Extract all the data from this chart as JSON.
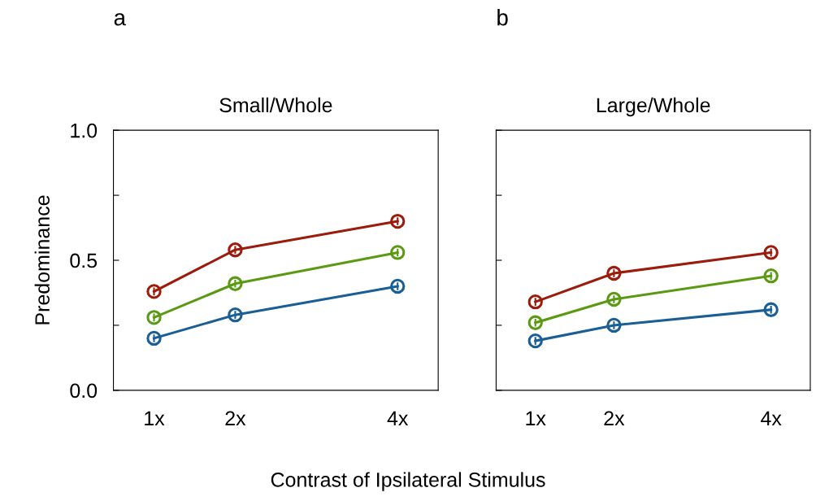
{
  "chart_data": [
    {
      "type": "line",
      "title": "Small/Whole",
      "ylabel": "Predominance",
      "xlabel": "Contrast of Ipsilateral Stimulus",
      "annotations": [
        "a"
      ],
      "x": [
        1,
        2,
        4
      ],
      "xlim": [
        0.5,
        4.5
      ],
      "xticks": [
        {
          "value": 1,
          "label": "1x"
        },
        {
          "value": 2,
          "label": "2x"
        },
        {
          "value": 4,
          "label": "4x"
        }
      ],
      "ylim": [
        0,
        1
      ],
      "yticks": [
        {
          "value": 0,
          "label": "0.0"
        },
        {
          "value": 0.25,
          "label": null
        },
        {
          "value": 0.5,
          "label": "0.5"
        },
        {
          "value": 0.75,
          "label": null
        },
        {
          "value": 1,
          "label": "1.0"
        }
      ],
      "marker": "circle",
      "grid": false,
      "series": [
        {
          "color": "#9b1c0c",
          "values": [
            0.38,
            0.54,
            0.65
          ],
          "errors": [
            0.015,
            0.015,
            0.015
          ]
        },
        {
          "color": "#5a9a12",
          "values": [
            0.28,
            0.41,
            0.53
          ],
          "errors": [
            0.015,
            0.015,
            0.015
          ]
        },
        {
          "color": "#1a5e96",
          "values": [
            0.2,
            0.29,
            0.4
          ],
          "errors": [
            0.015,
            0.015,
            0.015
          ]
        }
      ]
    },
    {
      "type": "line",
      "title": "Large/Whole",
      "annotations": [
        "b"
      ],
      "tick_labels": "x",
      "x": [
        1,
        2,
        4
      ],
      "xlim": [
        0.5,
        4.5
      ],
      "xticks": [
        {
          "value": 1,
          "label": "1x"
        },
        {
          "value": 2,
          "label": "2x"
        },
        {
          "value": 4,
          "label": "4x"
        }
      ],
      "ylim": [
        0,
        1
      ],
      "yticks": [
        {
          "value": 0,
          "label": null
        },
        {
          "value": 0.25,
          "label": null
        },
        {
          "value": 0.5,
          "label": null
        },
        {
          "value": 0.75,
          "label": null
        },
        {
          "value": 1,
          "label": null
        }
      ],
      "marker": "circle",
      "grid": false,
      "series": [
        {
          "color": "#9b1c0c",
          "values": [
            0.34,
            0.45,
            0.53
          ],
          "errors": [
            0.015,
            0.015,
            0.015
          ]
        },
        {
          "color": "#5a9a12",
          "values": [
            0.26,
            0.35,
            0.44
          ],
          "errors": [
            0.015,
            0.015,
            0.015
          ]
        },
        {
          "color": "#1a5e96",
          "values": [
            0.19,
            0.25,
            0.31
          ],
          "errors": [
            0.015,
            0.015,
            0.015
          ]
        }
      ]
    }
  ]
}
